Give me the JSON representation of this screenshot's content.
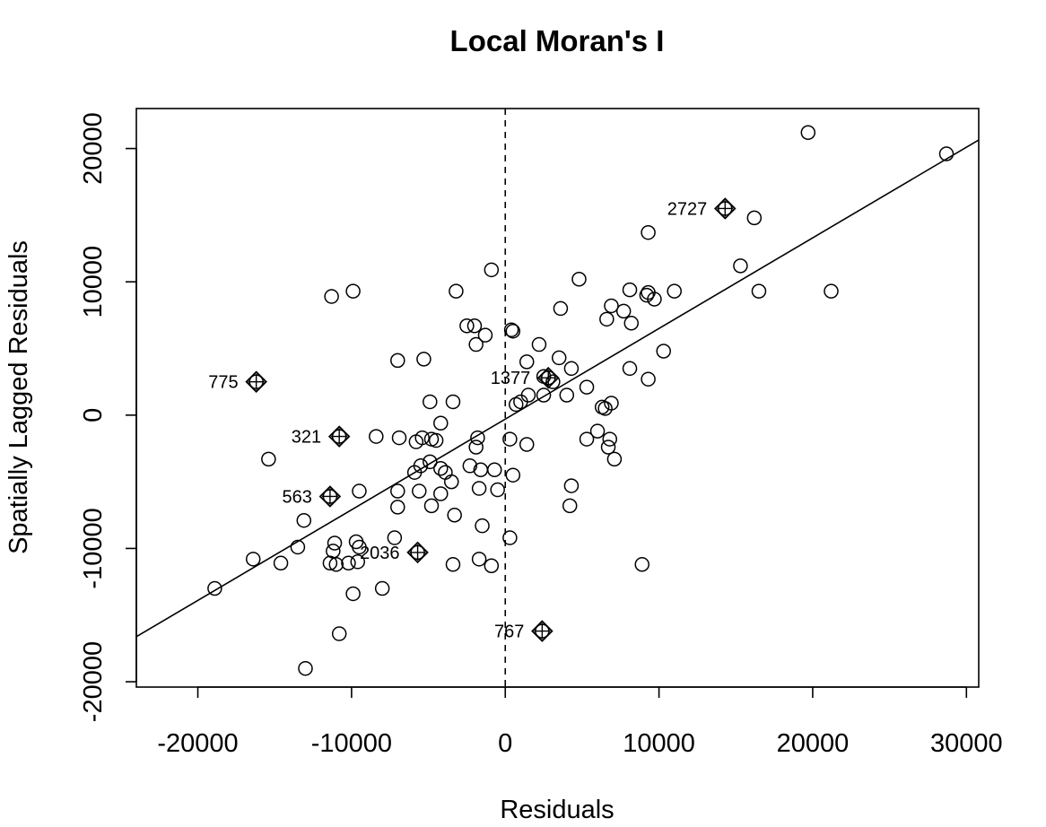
{
  "chart_data": {
    "type": "scatter",
    "title": "Local Moran's I",
    "xlabel": "Residuals",
    "ylabel": "Spatially Lagged Residuals",
    "xlim": [
      -24000,
      30800
    ],
    "ylim": [
      -20400,
      23000
    ],
    "x_ticks": [
      -20000,
      -10000,
      0,
      10000,
      20000,
      30000
    ],
    "x_tick_labels": [
      "-20000",
      "-10000",
      "0",
      "10000",
      "20000",
      "30000"
    ],
    "y_ticks": [
      -20000,
      -10000,
      0,
      10000,
      20000
    ],
    "y_tick_labels": [
      "-20000",
      "-10000",
      "0",
      "10000",
      "20000"
    ],
    "vertical_reference_x": 0,
    "regression_slope": 0.68,
    "regression_intercept": -300,
    "points": [
      [
        19700,
        21200
      ],
      [
        28700,
        19600
      ],
      [
        16200,
        14800
      ],
      [
        9300,
        13700
      ],
      [
        15300,
        11200
      ],
      [
        -900,
        10900
      ],
      [
        4800,
        10200
      ],
      [
        -3200,
        9300
      ],
      [
        -11300,
        8900
      ],
      [
        -9900,
        9300
      ],
      [
        8100,
        9400
      ],
      [
        9300,
        9200
      ],
      [
        9200,
        9000
      ],
      [
        9700,
        8700
      ],
      [
        11000,
        9300
      ],
      [
        16500,
        9300
      ],
      [
        21200,
        9300
      ],
      [
        6900,
        8200
      ],
      [
        3600,
        8000
      ],
      [
        7700,
        7800
      ],
      [
        6600,
        7200
      ],
      [
        8200,
        6900
      ],
      [
        -2500,
        6700
      ],
      [
        -2000,
        6700
      ],
      [
        400,
        6400
      ],
      [
        500,
        6300
      ],
      [
        -1300,
        6000
      ],
      [
        -1900,
        5300
      ],
      [
        2200,
        5300
      ],
      [
        10300,
        4800
      ],
      [
        3500,
        4300
      ],
      [
        -7000,
        4100
      ],
      [
        -5300,
        4200
      ],
      [
        1400,
        4000
      ],
      [
        8100,
        3500
      ],
      [
        4300,
        3500
      ],
      [
        9300,
        2700
      ],
      [
        2500,
        2900
      ],
      [
        3100,
        2500
      ],
      [
        5300,
        2100
      ],
      [
        2500,
        1500
      ],
      [
        4000,
        1500
      ],
      [
        1500,
        1500
      ],
      [
        1000,
        1000
      ],
      [
        700,
        800
      ],
      [
        6900,
        900
      ],
      [
        6300,
        600
      ],
      [
        6500,
        500
      ],
      [
        -3400,
        1000
      ],
      [
        -4900,
        1000
      ],
      [
        -4200,
        -600
      ],
      [
        6000,
        -1200
      ],
      [
        -8400,
        -1600
      ],
      [
        -6900,
        -1700
      ],
      [
        -5400,
        -1700
      ],
      [
        -5800,
        -2000
      ],
      [
        -4800,
        -1800
      ],
      [
        -4500,
        -1900
      ],
      [
        -1800,
        -1700
      ],
      [
        300,
        -1800
      ],
      [
        5300,
        -1800
      ],
      [
        6800,
        -1800
      ],
      [
        1400,
        -2200
      ],
      [
        -1900,
        -2400
      ],
      [
        6700,
        -2400
      ],
      [
        -15400,
        -3300
      ],
      [
        7100,
        -3300
      ],
      [
        -4900,
        -3500
      ],
      [
        -5500,
        -3800
      ],
      [
        -2300,
        -3800
      ],
      [
        -5900,
        -4300
      ],
      [
        -4200,
        -4000
      ],
      [
        -3900,
        -4300
      ],
      [
        -1600,
        -4100
      ],
      [
        -700,
        -4100
      ],
      [
        500,
        -4500
      ],
      [
        -3500,
        -5000
      ],
      [
        -9500,
        -5700
      ],
      [
        -7000,
        -5700
      ],
      [
        -5600,
        -5700
      ],
      [
        -4200,
        -5900
      ],
      [
        -1700,
        -5500
      ],
      [
        -500,
        -5600
      ],
      [
        4300,
        -5300
      ],
      [
        -7000,
        -6900
      ],
      [
        -4800,
        -6800
      ],
      [
        4200,
        -6800
      ],
      [
        -13100,
        -7900
      ],
      [
        -3300,
        -7500
      ],
      [
        -1500,
        -8300
      ],
      [
        -7200,
        -9200
      ],
      [
        300,
        -9200
      ],
      [
        -13500,
        -9900
      ],
      [
        -11100,
        -9600
      ],
      [
        -11200,
        -10200
      ],
      [
        -9700,
        -9500
      ],
      [
        -9500,
        -9900
      ],
      [
        -16400,
        -10800
      ],
      [
        -14600,
        -11100
      ],
      [
        -11400,
        -11100
      ],
      [
        -11000,
        -11200
      ],
      [
        -10200,
        -11100
      ],
      [
        -9600,
        -11000
      ],
      [
        -3400,
        -11200
      ],
      [
        -1700,
        -10800
      ],
      [
        -900,
        -11300
      ],
      [
        8900,
        -11200
      ],
      [
        -18900,
        -13000
      ],
      [
        -9900,
        -13400
      ],
      [
        -8000,
        -13000
      ],
      [
        -10800,
        -16400
      ],
      [
        -13000,
        -19000
      ]
    ],
    "influential_points": [
      {
        "label": "2727",
        "x": 14300,
        "y": 15500
      },
      {
        "label": "775",
        "x": -16200,
        "y": 2500
      },
      {
        "label": "1377",
        "x": 2800,
        "y": 2800
      },
      {
        "label": "321",
        "x": -10800,
        "y": -1600
      },
      {
        "label": "563",
        "x": -11400,
        "y": -6100
      },
      {
        "label": "2036",
        "x": -5700,
        "y": -10300
      },
      {
        "label": "767",
        "x": 2400,
        "y": -16200
      }
    ]
  }
}
